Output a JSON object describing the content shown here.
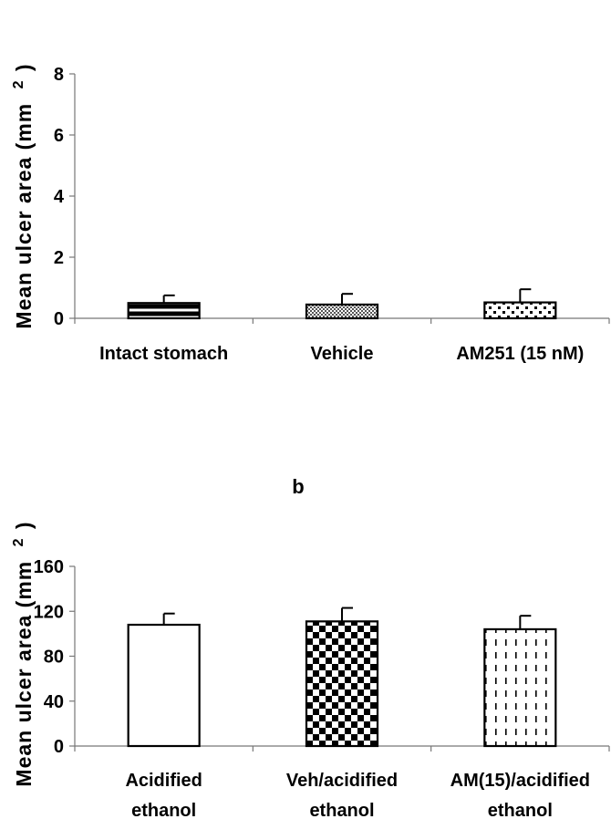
{
  "chart_data": [
    {
      "type": "bar",
      "title": "",
      "ylabel": "Mean ulcer area (mm 2)",
      "ylabel_main": "Mean ulcer area (mm",
      "ylabel_sup": "2",
      "ylabel_close": ")",
      "ylim": [
        0,
        8
      ],
      "yticks": [
        "0",
        "2",
        "4",
        "6",
        "8"
      ],
      "ytick_values": [
        0,
        2,
        4,
        6,
        8
      ],
      "categories": [
        "Intact stomach",
        "Vehicle",
        "AM251 (15 nM)"
      ],
      "category_lines": [
        [
          "Intact stomach"
        ],
        [
          "Vehicle"
        ],
        [
          "AM251 (15 nM)"
        ]
      ],
      "values": [
        0.5,
        0.45,
        0.52
      ],
      "errors": [
        0.25,
        0.35,
        0.43
      ],
      "patterns": [
        "horizontal-stripe",
        "fine-dots",
        "sparse-squares"
      ]
    },
    {
      "type": "bar",
      "title": "b",
      "ylabel": "Mean ulcer area (mm 2)",
      "ylabel_main": "Mean ulcer area (mm",
      "ylabel_sup": "2",
      "ylabel_close": ")",
      "ylim": [
        0,
        160
      ],
      "yticks": [
        "0",
        "40",
        "80",
        "120",
        "160"
      ],
      "ytick_values": [
        0,
        40,
        80,
        120,
        160
      ],
      "categories": [
        "Acidified ethanol",
        "Veh/acidified ethanol",
        "AM(15)/acidified ethanol"
      ],
      "category_lines": [
        [
          "Acidified",
          "ethanol"
        ],
        [
          "Veh/acidified",
          "ethanol"
        ],
        [
          "AM(15)/acidified",
          "ethanol"
        ]
      ],
      "values": [
        108,
        111,
        104
      ],
      "errors": [
        10,
        12,
        12
      ],
      "patterns": [
        "none",
        "checker",
        "dashed-vertical"
      ]
    }
  ]
}
